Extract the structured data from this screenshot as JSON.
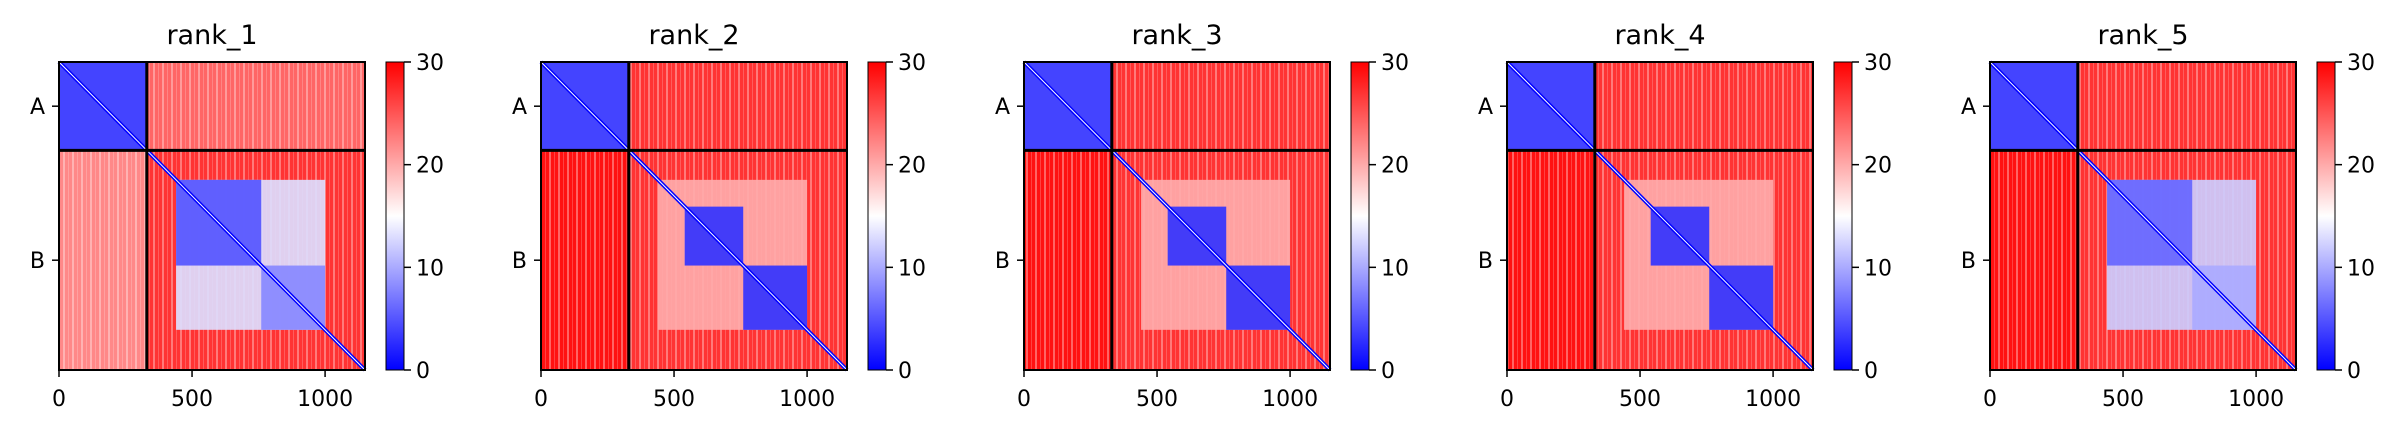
{
  "chart_data": [
    {
      "type": "heatmap",
      "title": "rank_1",
      "chains": [
        "A",
        "B"
      ],
      "chain_boundary": 330,
      "length": 1150,
      "xticks": [
        0,
        500,
        1000
      ],
      "colorbar": {
        "min": 0,
        "max": 30,
        "ticks": [
          0,
          10,
          20,
          30
        ],
        "colors": [
          "#0000ff",
          "#ffffff",
          "#ff0000"
        ]
      },
      "blocks": [
        {
          "row": "A",
          "col": "A",
          "level": 4
        },
        {
          "row": "A",
          "col": "B",
          "level": 24
        },
        {
          "row": "B",
          "col": "A",
          "level": 22
        },
        {
          "row": "B",
          "col": "B",
          "level": 27
        }
      ],
      "domains_B": [
        {
          "from": 440,
          "to": 760,
          "level": 5
        },
        {
          "from": 760,
          "to": 1000,
          "level": 8
        },
        {
          "from": 440,
          "to": 1000,
          "level": 13
        }
      ]
    },
    {
      "type": "heatmap",
      "title": "rank_2",
      "chains": [
        "A",
        "B"
      ],
      "chain_boundary": 330,
      "length": 1150,
      "xticks": [
        0,
        500,
        1000
      ],
      "colorbar": {
        "min": 0,
        "max": 30,
        "ticks": [
          0,
          10,
          20,
          30
        ],
        "colors": [
          "#0000ff",
          "#ffffff",
          "#ff0000"
        ]
      },
      "blocks": [
        {
          "row": "A",
          "col": "A",
          "level": 4
        },
        {
          "row": "A",
          "col": "B",
          "level": 27
        },
        {
          "row": "B",
          "col": "A",
          "level": 29
        },
        {
          "row": "B",
          "col": "B",
          "level": 27
        }
      ],
      "domains_B": [
        {
          "from": 540,
          "to": 760,
          "level": 3
        },
        {
          "from": 760,
          "to": 1000,
          "level": 3
        },
        {
          "from": 440,
          "to": 1000,
          "level": 20
        }
      ]
    },
    {
      "type": "heatmap",
      "title": "rank_3",
      "chains": [
        "A",
        "B"
      ],
      "chain_boundary": 330,
      "length": 1150,
      "xticks": [
        0,
        500,
        1000
      ],
      "colorbar": {
        "min": 0,
        "max": 30,
        "ticks": [
          0,
          10,
          20,
          30
        ],
        "colors": [
          "#0000ff",
          "#ffffff",
          "#ff0000"
        ]
      },
      "blocks": [
        {
          "row": "A",
          "col": "A",
          "level": 4
        },
        {
          "row": "A",
          "col": "B",
          "level": 27
        },
        {
          "row": "B",
          "col": "A",
          "level": 29
        },
        {
          "row": "B",
          "col": "B",
          "level": 27
        }
      ],
      "domains_B": [
        {
          "from": 540,
          "to": 760,
          "level": 3
        },
        {
          "from": 760,
          "to": 1000,
          "level": 3
        },
        {
          "from": 440,
          "to": 1000,
          "level": 20
        }
      ]
    },
    {
      "type": "heatmap",
      "title": "rank_4",
      "chains": [
        "A",
        "B"
      ],
      "chain_boundary": 330,
      "length": 1150,
      "xticks": [
        0,
        500,
        1000
      ],
      "colorbar": {
        "min": 0,
        "max": 30,
        "ticks": [
          0,
          10,
          20,
          30
        ],
        "colors": [
          "#0000ff",
          "#ffffff",
          "#ff0000"
        ]
      },
      "blocks": [
        {
          "row": "A",
          "col": "A",
          "level": 4
        },
        {
          "row": "A",
          "col": "B",
          "level": 27
        },
        {
          "row": "B",
          "col": "A",
          "level": 29
        },
        {
          "row": "B",
          "col": "B",
          "level": 27
        }
      ],
      "domains_B": [
        {
          "from": 540,
          "to": 760,
          "level": 3
        },
        {
          "from": 760,
          "to": 1000,
          "level": 3
        },
        {
          "from": 440,
          "to": 1000,
          "level": 20
        }
      ]
    },
    {
      "type": "heatmap",
      "title": "rank_5",
      "chains": [
        "A",
        "B"
      ],
      "chain_boundary": 330,
      "length": 1150,
      "xticks": [
        0,
        500,
        1000
      ],
      "colorbar": {
        "min": 0,
        "max": 30,
        "ticks": [
          0,
          10,
          20,
          30
        ],
        "colors": [
          "#0000ff",
          "#ffffff",
          "#ff0000"
        ]
      },
      "blocks": [
        {
          "row": "A",
          "col": "A",
          "level": 4
        },
        {
          "row": "A",
          "col": "B",
          "level": 27
        },
        {
          "row": "B",
          "col": "A",
          "level": 29
        },
        {
          "row": "B",
          "col": "B",
          "level": 27
        }
      ],
      "domains_B": [
        {
          "from": 440,
          "to": 760,
          "level": 6
        },
        {
          "from": 760,
          "to": 1000,
          "level": 10
        },
        {
          "from": 440,
          "to": 1000,
          "level": 12
        }
      ]
    }
  ]
}
